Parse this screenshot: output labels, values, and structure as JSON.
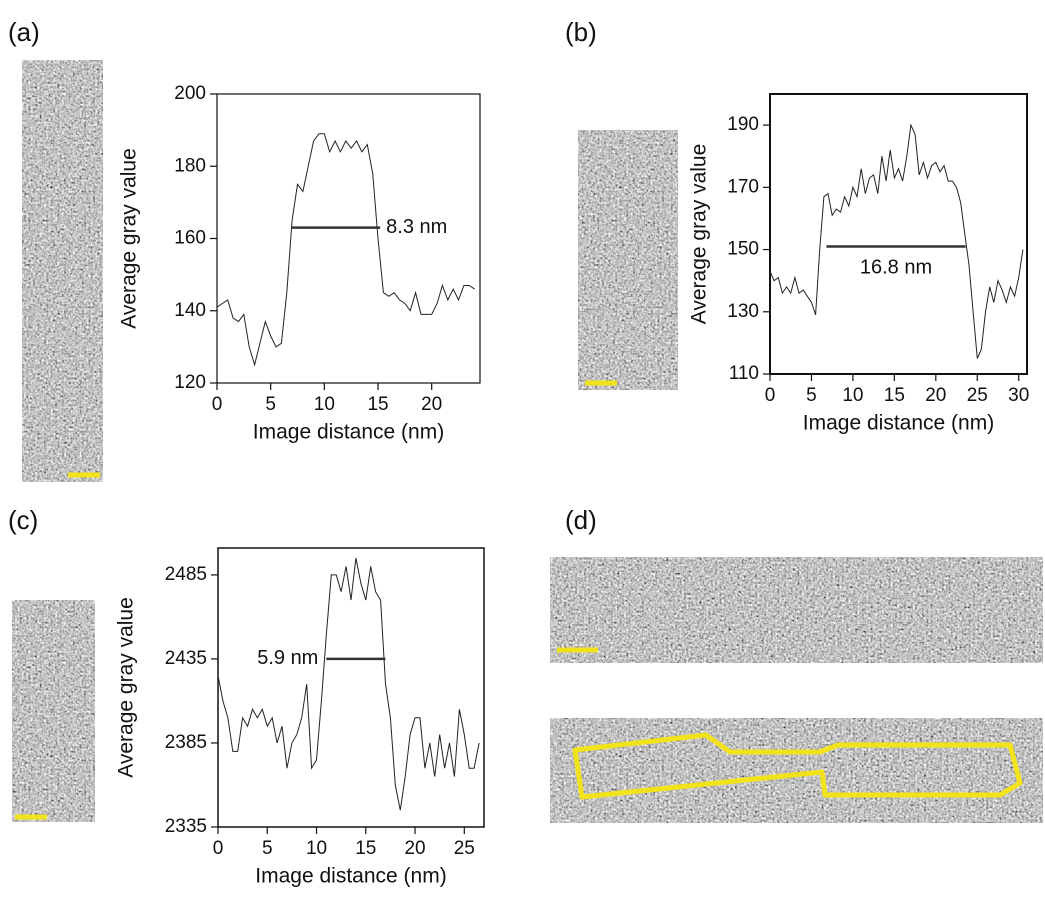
{
  "panels": [
    "(a)",
    "(b)",
    "(c)",
    "(d)"
  ],
  "chart_data": [
    {
      "type": "line",
      "xlabel": "Image distance (nm)",
      "ylabel": "Average gray value",
      "xlim": [
        0,
        24.5
      ],
      "xticks": [
        0,
        5,
        10,
        15,
        20
      ],
      "ylim": [
        120,
        200
      ],
      "yticks": [
        120,
        140,
        160,
        180,
        200
      ],
      "color": "#222",
      "x": [
        0,
        0.5,
        1,
        1.5,
        2,
        2.5,
        3,
        3.5,
        4,
        4.5,
        5,
        5.5,
        6,
        6.5,
        7,
        7.5,
        8,
        8.5,
        9,
        9.5,
        10,
        10.5,
        11,
        11.5,
        12,
        12.5,
        13,
        13.5,
        14,
        14.5,
        15,
        15.5,
        16,
        16.5,
        17,
        17.5,
        18,
        18.5,
        19,
        19.5,
        20,
        20.5,
        21,
        21.5,
        22,
        22.5,
        23,
        23.5,
        24
      ],
      "values": [
        141,
        142,
        143,
        138,
        137,
        139,
        130,
        125,
        131,
        137,
        133,
        130,
        131,
        145,
        165,
        175,
        173,
        180,
        187,
        189,
        189,
        184,
        187,
        184,
        187,
        185,
        187,
        184,
        186,
        178,
        160,
        145,
        144,
        145,
        143,
        142,
        140,
        145,
        139,
        139,
        139,
        142,
        147,
        143,
        146,
        143,
        147,
        147,
        146
      ],
      "annotation": {
        "text": "8.3 nm",
        "x": [
          6.9,
          15.2
        ],
        "y": 163
      }
    },
    {
      "type": "line",
      "xlabel": "Image distance (nm)",
      "ylabel": "Average gray value",
      "xlim": [
        0,
        31
      ],
      "xticks": [
        0,
        5,
        10,
        15,
        20,
        25,
        30
      ],
      "ylim": [
        110,
        200
      ],
      "yticks": [
        110,
        130,
        150,
        170,
        190
      ],
      "color": "#222",
      "x": [
        0,
        0.5,
        1,
        1.5,
        2,
        2.5,
        3,
        3.5,
        4,
        4.5,
        5,
        5.5,
        6,
        6.5,
        7,
        7.5,
        8,
        8.5,
        9,
        9.5,
        10,
        10.5,
        11,
        11.5,
        12,
        12.5,
        13,
        13.5,
        14,
        14.5,
        15,
        15.5,
        16,
        16.5,
        17,
        17.5,
        18,
        18.5,
        19,
        19.5,
        20,
        20.5,
        21,
        21.5,
        22,
        22.5,
        23,
        23.5,
        24,
        24.5,
        25,
        25.5,
        26,
        26.5,
        27,
        27.5,
        28,
        28.5,
        29,
        29.5,
        30,
        30.5
      ],
      "values": [
        143,
        140,
        141,
        136,
        138,
        136,
        141,
        136,
        137,
        135,
        133,
        129,
        150,
        167,
        168,
        161,
        163,
        162,
        167,
        164,
        170,
        167,
        176,
        168,
        173,
        174,
        168,
        180,
        172,
        182,
        173,
        176,
        172,
        180,
        190,
        187,
        174,
        178,
        173,
        177,
        178,
        175,
        177,
        172,
        172,
        170,
        165,
        155,
        145,
        130,
        115,
        118,
        130,
        138,
        133,
        140,
        137,
        133,
        138,
        135,
        141,
        150
      ],
      "annotation": {
        "text": "16.8 nm",
        "x": [
          6.8,
          23.6
        ],
        "y": 151
      }
    },
    {
      "type": "line",
      "xlabel": "Image distance (nm)",
      "ylabel": "Average gray value",
      "xlim": [
        0,
        27
      ],
      "xticks": [
        0,
        5,
        10,
        15,
        20,
        25
      ],
      "ylim": [
        2335,
        2501
      ],
      "yticks": [
        2335,
        2385,
        2435,
        2485
      ],
      "color": "#222",
      "x": [
        0,
        0.5,
        1,
        1.5,
        2,
        2.5,
        3,
        3.5,
        4,
        4.5,
        5,
        5.5,
        6,
        6.5,
        7,
        7.5,
        8,
        8.5,
        9,
        9.5,
        10,
        10.5,
        11,
        11.5,
        12,
        12.5,
        13,
        13.5,
        14,
        14.5,
        15,
        15.5,
        16,
        16.5,
        17,
        17.5,
        18,
        18.5,
        19,
        19.5,
        20,
        20.5,
        21,
        21.5,
        22,
        22.5,
        23,
        23.5,
        24,
        24.5,
        25,
        25.5,
        26,
        26.5
      ],
      "values": [
        2425,
        2410,
        2400,
        2380,
        2380,
        2400,
        2395,
        2405,
        2400,
        2405,
        2395,
        2400,
        2385,
        2395,
        2370,
        2385,
        2390,
        2400,
        2420,
        2370,
        2375,
        2410,
        2450,
        2485,
        2485,
        2475,
        2490,
        2470,
        2495,
        2480,
        2470,
        2490,
        2475,
        2470,
        2420,
        2400,
        2360,
        2345,
        2365,
        2390,
        2400,
        2400,
        2370,
        2385,
        2365,
        2390,
        2370,
        2385,
        2365,
        2405,
        2390,
        2370,
        2370,
        2385
      ],
      "annotation": {
        "text": "5.9 nm",
        "x": [
          11,
          17
        ],
        "y": 2435
      }
    }
  ]
}
